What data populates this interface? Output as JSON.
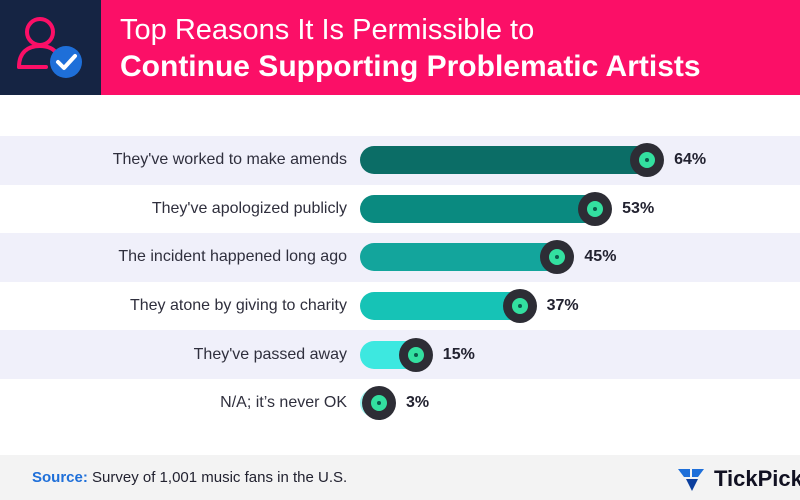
{
  "header": {
    "title_line1": "Top Reasons It Is Permissible to",
    "title_line2": "Continue Supporting Problematic Artists",
    "icon": "user-check-icon"
  },
  "chart_data": {
    "type": "bar",
    "orientation": "horizontal",
    "title": "Top Reasons It Is Permissible to Continue Supporting Problematic Artists",
    "categories": [
      "They've worked to make amends",
      "They've apologized publicly",
      "The incident happened long ago",
      "They atone by giving to charity",
      "They've passed away",
      "N/A; it’s never OK"
    ],
    "values": [
      64,
      53,
      45,
      37,
      15,
      3
    ],
    "value_labels": [
      "64%",
      "53%",
      "45%",
      "37%",
      "15%",
      "3%"
    ],
    "unit": "%",
    "xlim": [
      0,
      100
    ],
    "bar_colors": [
      "#0b6d66",
      "#0a8a80",
      "#13a59c",
      "#16c3b6",
      "#3de8e0",
      "#9ff5ef"
    ]
  },
  "colors": {
    "header_bg": "#fb0f67",
    "icon_bg": "#152443",
    "record": "#2d2d35",
    "record_label": "#33e0a0",
    "source_label": "#1e6fd9"
  },
  "footer": {
    "source_label": "Source:",
    "source_text": "Survey of 1,001 music fans in the U.S.",
    "brand": "TickPick",
    "brand_icon": "tickpick-logo-icon"
  }
}
